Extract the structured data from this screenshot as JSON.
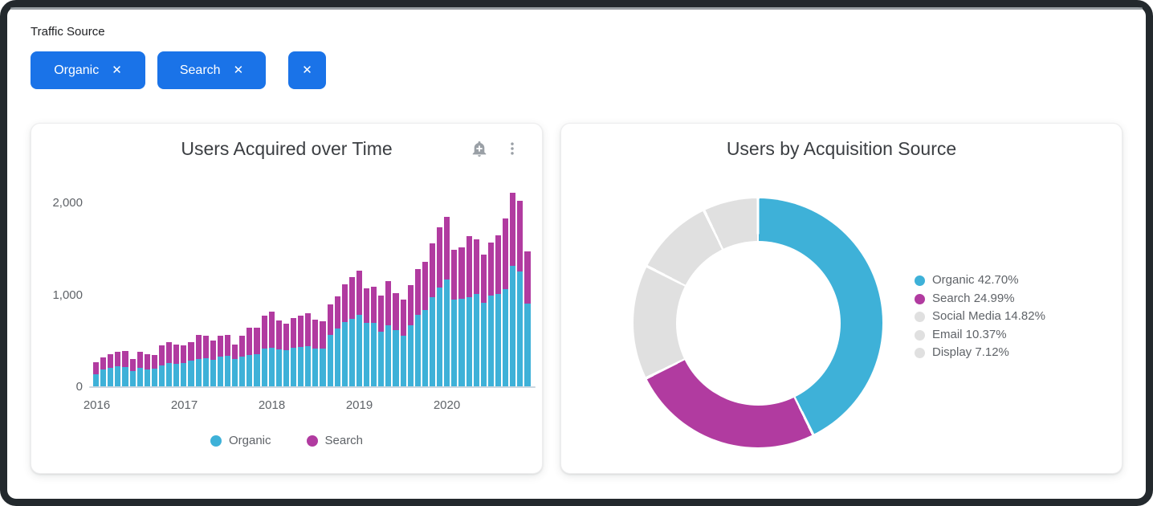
{
  "filter_bar": {
    "label": "Traffic Source",
    "chips": [
      {
        "label": "Organic",
        "remove_icon": "✕"
      },
      {
        "label": "Search",
        "remove_icon": "✕"
      },
      {
        "label": "",
        "remove_icon": "✕"
      }
    ]
  },
  "left_card": {
    "title": "Users Acquired over Time"
  },
  "right_card": {
    "title": "Users by Acquisition Source"
  },
  "colors": {
    "chip_blue": "#1a73e8",
    "organic_teal": "#3eb1d8",
    "search_magenta": "#b13ba0",
    "other_gray": "#e0e0e0",
    "title_text": "#3b3e42",
    "axis_text": "#5f6368",
    "icon_gray": "#9aa0a6",
    "frame_dark": "#23292d"
  },
  "chart_data": [
    {
      "type": "bar",
      "stacked": true,
      "title": "Users Acquired over Time",
      "x": [
        "2016-01",
        "2016-02",
        "2016-03",
        "2016-04",
        "2016-05",
        "2016-06",
        "2016-07",
        "2016-08",
        "2016-09",
        "2016-10",
        "2016-11",
        "2016-12",
        "2017-01",
        "2017-02",
        "2017-03",
        "2017-04",
        "2017-05",
        "2017-06",
        "2017-07",
        "2017-08",
        "2017-09",
        "2017-10",
        "2017-11",
        "2017-12",
        "2018-01",
        "2018-02",
        "2018-03",
        "2018-04",
        "2018-05",
        "2018-06",
        "2018-07",
        "2018-08",
        "2018-09",
        "2018-10",
        "2018-11",
        "2018-12",
        "2019-01",
        "2019-02",
        "2019-03",
        "2019-04",
        "2019-05",
        "2019-06",
        "2019-07",
        "2019-08",
        "2019-09",
        "2019-10",
        "2019-11",
        "2019-12",
        "2020-01",
        "2020-02",
        "2020-03",
        "2020-04",
        "2020-05",
        "2020-06",
        "2020-07",
        "2020-08",
        "2020-09",
        "2020-10",
        "2020-11",
        "2020-12"
      ],
      "series": [
        {
          "name": "Organic",
          "color": "#3eb1d8",
          "values": [
            140,
            190,
            210,
            225,
            220,
            175,
            210,
            195,
            200,
            240,
            260,
            250,
            260,
            290,
            310,
            315,
            300,
            330,
            340,
            310,
            330,
            350,
            355,
            420,
            430,
            410,
            400,
            430,
            440,
            450,
            420,
            420,
            565,
            640,
            710,
            740,
            785,
            695,
            700,
            600,
            675,
            620,
            560,
            675,
            790,
            835,
            980,
            1080,
            1170,
            950,
            965,
            980,
            1010,
            920,
            995,
            1010,
            1065,
            1315,
            1255,
            910
          ]
        },
        {
          "name": "Search",
          "color": "#b13ba0",
          "values": [
            135,
            135,
            150,
            160,
            170,
            135,
            175,
            160,
            150,
            215,
            230,
            210,
            190,
            200,
            260,
            245,
            210,
            230,
            225,
            150,
            230,
            295,
            290,
            355,
            390,
            320,
            290,
            320,
            335,
            350,
            315,
            300,
            335,
            345,
            405,
            460,
            485,
            380,
            390,
            395,
            475,
            405,
            390,
            435,
            495,
            525,
            580,
            660,
            680,
            540,
            555,
            660,
            595,
            525,
            580,
            640,
            770,
            795,
            770,
            570
          ]
        }
      ],
      "xticks": [
        "2016",
        "2017",
        "2018",
        "2019",
        "2020"
      ],
      "yticks": [
        "0",
        "1,000",
        "2,000"
      ],
      "ylim": [
        0,
        2000
      ],
      "grid": false,
      "legend_position": "bottom"
    },
    {
      "type": "pie",
      "donut": true,
      "donut_hole_ratio": 0.66,
      "title": "Users by Acquisition Source",
      "labels": [
        "Organic",
        "Search",
        "Social Media",
        "Email",
        "Display"
      ],
      "values": [
        42.7,
        24.99,
        14.82,
        10.37,
        7.12
      ],
      "unit": "%",
      "colors": [
        "#3eb1d8",
        "#b13ba0",
        "#e0e0e0",
        "#e0e0e0",
        "#e0e0e0"
      ],
      "start_angle": "top",
      "direction": "clockwise",
      "legend_position": "right"
    }
  ]
}
